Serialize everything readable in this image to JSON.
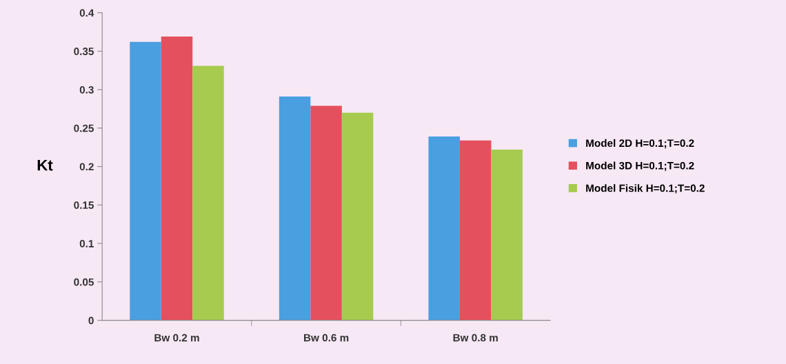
{
  "chart_data": {
    "type": "bar",
    "ylabel": "Kt",
    "categories": [
      "Bw 0.2 m",
      "Bw 0.6 m",
      "Bw 0.8 m"
    ],
    "series": [
      {
        "name": "Model 2D H=0.1;T=0.2",
        "color": "#4a9fe0",
        "values": [
          0.362,
          0.291,
          0.239
        ]
      },
      {
        "name": "Model 3D H=0.1;T=0.2",
        "color": "#e4505e",
        "values": [
          0.369,
          0.279,
          0.234
        ]
      },
      {
        "name": "Model Fisik H=0.1;T=0.2",
        "color": "#a6cb4e",
        "values": [
          0.331,
          0.27,
          0.222
        ]
      }
    ],
    "ylim": [
      0,
      0.4
    ],
    "yticks": [
      0,
      0.05,
      0.1,
      0.15,
      0.2,
      0.25,
      0.3,
      0.35,
      0.4
    ],
    "grid": false,
    "legend": "right"
  }
}
